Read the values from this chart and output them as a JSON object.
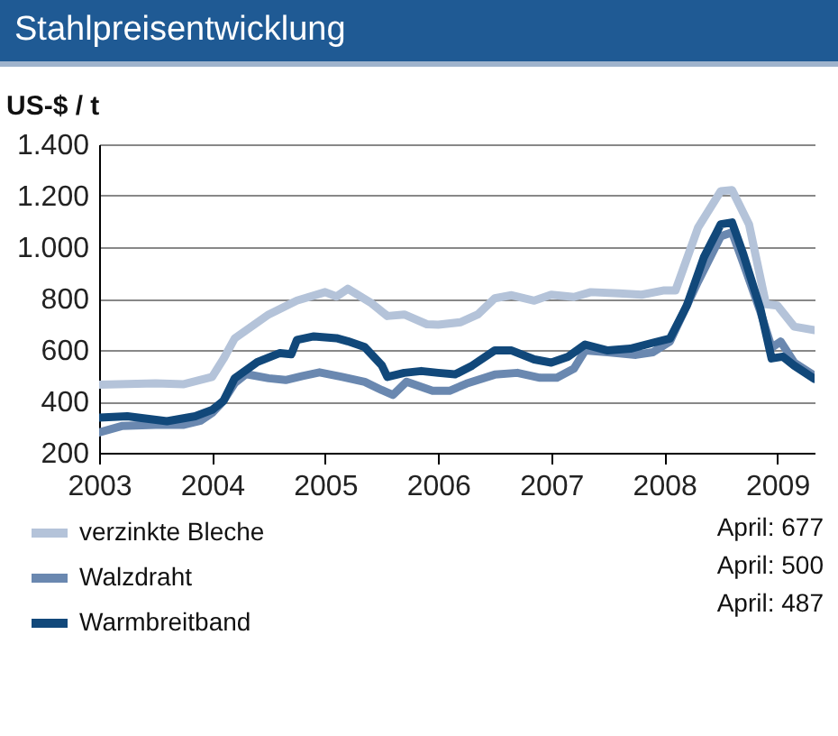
{
  "chart_data": {
    "type": "line",
    "title": "Stahlpreisentwicklung",
    "ylabel": "US-$ / t",
    "xlim": [
      2003,
      2009.33
    ],
    "xticks": [
      2003,
      2004,
      2005,
      2006,
      2007,
      2008,
      2009
    ],
    "ylim": [
      200,
      1400
    ],
    "yticks": [
      {
        "value": 200,
        "label": "200"
      },
      {
        "value": 400,
        "label": "400"
      },
      {
        "value": 600,
        "label": "600"
      },
      {
        "value": 800,
        "label": "800"
      },
      {
        "value": 1000,
        "label": "1.000"
      },
      {
        "value": 1200,
        "label": "1.200"
      },
      {
        "value": 1400,
        "label": "1.400"
      }
    ],
    "grid": "y",
    "legend": "bottom left",
    "line_style": "solid",
    "annotations": [
      "April: 677",
      "April: 500",
      "April: 487"
    ],
    "series": [
      {
        "name": "verzinkte Bleche",
        "color": "#b4c3d9",
        "x": [
          2003.0,
          2003.5,
          2003.75,
          2004.0,
          2004.1,
          2004.2,
          2004.5,
          2004.75,
          2005.0,
          2005.1,
          2005.2,
          2005.4,
          2005.55,
          2005.7,
          2005.9,
          2006.0,
          2006.2,
          2006.35,
          2006.5,
          2006.65,
          2006.85,
          2007.0,
          2007.2,
          2007.35,
          2007.6,
          2007.8,
          2008.0,
          2008.1,
          2008.3,
          2008.5,
          2008.6,
          2008.75,
          2008.9,
          2009.0,
          2009.15,
          2009.33
        ],
        "values": [
          465,
          470,
          467,
          495,
          565,
          645,
          738,
          792,
          825,
          808,
          838,
          785,
          732,
          738,
          700,
          698,
          708,
          738,
          801,
          813,
          792,
          815,
          806,
          825,
          820,
          815,
          832,
          832,
          1077,
          1218,
          1222,
          1089,
          778,
          773,
          691,
          677
        ]
      },
      {
        "name": "Walzdraht",
        "color": "#6a88b0",
        "x": [
          2003.0,
          2003.2,
          2003.5,
          2003.75,
          2003.9,
          2004.0,
          2004.1,
          2004.2,
          2004.3,
          2004.5,
          2004.65,
          2004.8,
          2004.95,
          2005.15,
          2005.35,
          2005.5,
          2005.6,
          2005.72,
          2005.95,
          2006.1,
          2006.25,
          2006.5,
          2006.7,
          2006.9,
          2007.05,
          2007.2,
          2007.3,
          2007.5,
          2007.75,
          2007.9,
          2008.05,
          2008.3,
          2008.5,
          2008.6,
          2008.7,
          2008.85,
          2008.95,
          2009.03,
          2009.15,
          2009.33
        ],
        "values": [
          279,
          304,
          309,
          309,
          325,
          355,
          402,
          471,
          506,
          490,
          483,
          499,
          513,
          495,
          476,
          444,
          425,
          476,
          441,
          441,
          469,
          504,
          511,
          492,
          492,
          527,
          598,
          591,
          581,
          591,
          633,
          867,
          1042,
          1058,
          937,
          750,
          609,
          633,
          551,
          500
        ]
      },
      {
        "name": "Warmbreitband",
        "color": "#11487a",
        "x": [
          2003.0,
          2003.25,
          2003.6,
          2003.85,
          2004.0,
          2004.1,
          2004.2,
          2004.4,
          2004.6,
          2004.7,
          2004.75,
          2004.9,
          2005.1,
          2005.2,
          2005.35,
          2005.5,
          2005.55,
          2005.7,
          2005.85,
          2006.0,
          2006.15,
          2006.3,
          2006.5,
          2006.65,
          2006.85,
          2007.0,
          2007.15,
          2007.3,
          2007.5,
          2007.7,
          2007.9,
          2008.05,
          2008.2,
          2008.35,
          2008.5,
          2008.6,
          2008.7,
          2008.85,
          2008.95,
          2009.05,
          2009.15,
          2009.33
        ],
        "values": [
          337,
          342,
          323,
          342,
          367,
          402,
          490,
          553,
          588,
          583,
          639,
          653,
          646,
          634,
          611,
          541,
          495,
          511,
          518,
          511,
          505,
          539,
          598,
          598,
          563,
          551,
          574,
          621,
          598,
          605,
          628,
          644,
          773,
          960,
          1089,
          1096,
          972,
          761,
          567,
          574,
          539,
          487
        ]
      }
    ]
  }
}
